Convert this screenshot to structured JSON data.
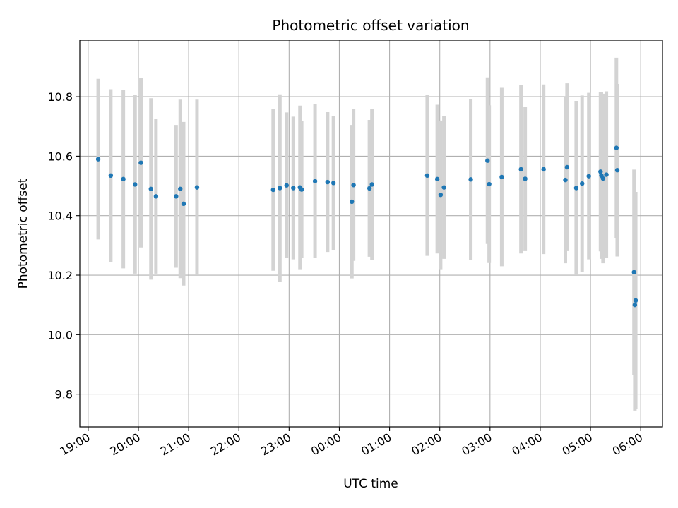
{
  "chart_data": {
    "type": "scatter",
    "title": "Photometric offset variation",
    "xlabel": "UTC time",
    "ylabel": "Photometric offset",
    "grid": true,
    "legend": "none",
    "x_axis": "time",
    "x_range": [
      "2000-01-01T18:50",
      "2000-01-02T06:26"
    ],
    "ylim": [
      9.69,
      10.99
    ],
    "x_ticks": [
      "19:00",
      "20:00",
      "21:00",
      "22:00",
      "23:00",
      "00:00",
      "01:00",
      "02:00",
      "03:00",
      "04:00",
      "05:00",
      "06:00"
    ],
    "y_ticks": [
      9.8,
      10.0,
      10.2,
      10.4,
      10.6,
      10.8
    ],
    "colors": {
      "points": "#1f77b4",
      "errorbars": "#d3d3d3",
      "grid": "#b0b0b0"
    },
    "series": [
      {
        "x": [
          "19:12",
          "19:27",
          "19:42",
          "19:56",
          "20:03",
          "20:15",
          "20:21",
          "20:45",
          "20:50",
          "20:54",
          "21:10",
          "22:41",
          "22:49",
          "22:57",
          "23:05",
          "23:13",
          "23:15",
          "23:31",
          "23:46",
          "23:53",
          "00:15",
          "00:17",
          "00:36",
          "00:39",
          "01:45",
          "01:57",
          "02:01",
          "02:05",
          "02:37",
          "02:57",
          "02:59",
          "03:14",
          "03:37",
          "03:42",
          "04:04",
          "04:30",
          "04:32",
          "04:43",
          "04:50",
          "04:58",
          "05:12",
          "05:13",
          "05:15",
          "05:19",
          "05:31",
          "05:32",
          "05:52",
          "05:53",
          "05:54"
        ],
        "y": [
          10.59,
          10.535,
          10.523,
          10.505,
          10.578,
          10.49,
          10.465,
          10.465,
          10.49,
          10.44,
          10.495,
          10.487,
          10.493,
          10.502,
          10.493,
          10.495,
          10.488,
          10.516,
          10.513,
          10.51,
          10.447,
          10.503,
          10.492,
          10.505,
          10.535,
          10.523,
          10.47,
          10.495,
          10.522,
          10.585,
          10.506,
          10.53,
          10.556,
          10.524,
          10.556,
          10.52,
          10.563,
          10.493,
          10.508,
          10.533,
          10.548,
          10.535,
          10.525,
          10.538,
          10.628,
          10.553,
          10.21,
          10.1,
          10.115
        ],
        "error": [
          0.27,
          0.29,
          0.3,
          0.3,
          0.285,
          0.305,
          0.26,
          0.24,
          0.3,
          0.275,
          0.295,
          0.272,
          0.315,
          0.245,
          0.24,
          0.275,
          0.23,
          0.258,
          0.235,
          0.225,
          0.258,
          0.255,
          0.23,
          0.255,
          0.27,
          0.25,
          0.25,
          0.24,
          0.27,
          0.28,
          0.265,
          0.3,
          0.283,
          0.243,
          0.285,
          0.28,
          0.282,
          0.293,
          0.296,
          0.28,
          0.268,
          0.28,
          0.285,
          0.28,
          0.303,
          0.29,
          0.345,
          0.355,
          0.365
        ]
      }
    ]
  }
}
